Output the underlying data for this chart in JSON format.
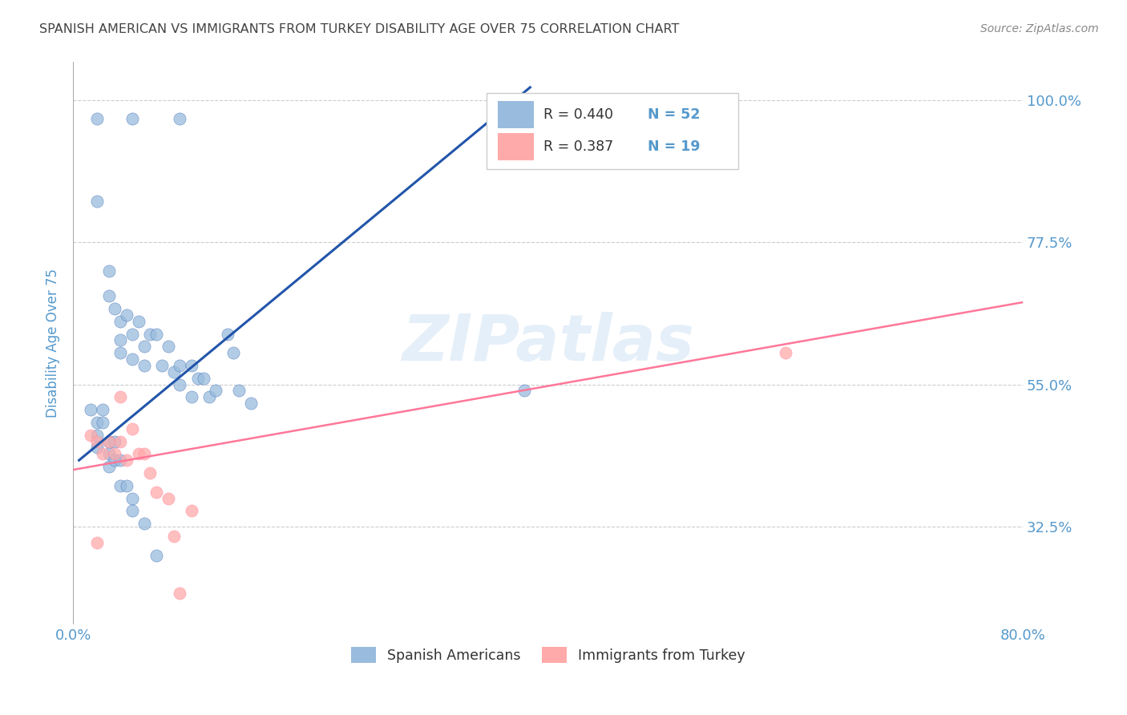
{
  "title": "SPANISH AMERICAN VS IMMIGRANTS FROM TURKEY DISABILITY AGE OVER 75 CORRELATION CHART",
  "source": "Source: ZipAtlas.com",
  "ylabel": "Disability Age Over 75",
  "yticks": [
    "100.0%",
    "77.5%",
    "55.0%",
    "32.5%"
  ],
  "ytick_values": [
    1.0,
    0.775,
    0.55,
    0.325
  ],
  "xmin": 0.0,
  "xmax": 0.8,
  "ymin": 0.17,
  "ymax": 1.06,
  "watermark": "ZIPatlas",
  "legend_r1": "R = 0.440",
  "legend_n1": "N = 52",
  "legend_r2": "R = 0.387",
  "legend_n2": "N = 19",
  "legend_label1": "Spanish Americans",
  "legend_label2": "Immigrants from Turkey",
  "blue_color": "#99BBDD",
  "pink_color": "#FFAAAA",
  "line_blue": "#2255AA",
  "line_pink": "#FF7799",
  "title_color": "#444444",
  "axis_label_color": "#5599CC",
  "tick_color": "#5599CC",
  "blue_scatter_x": [
    0.02,
    0.05,
    0.09,
    0.02,
    0.03,
    0.03,
    0.035,
    0.04,
    0.04,
    0.04,
    0.045,
    0.05,
    0.05,
    0.055,
    0.06,
    0.06,
    0.065,
    0.07,
    0.075,
    0.08,
    0.085,
    0.09,
    0.09,
    0.1,
    0.1,
    0.105,
    0.11,
    0.115,
    0.12,
    0.13,
    0.135,
    0.14,
    0.15,
    0.015,
    0.02,
    0.02,
    0.02,
    0.025,
    0.025,
    0.03,
    0.03,
    0.03,
    0.035,
    0.035,
    0.04,
    0.04,
    0.045,
    0.05,
    0.05,
    0.06,
    0.07,
    0.38
  ],
  "blue_scatter_y": [
    0.97,
    0.97,
    0.97,
    0.84,
    0.73,
    0.69,
    0.67,
    0.65,
    0.62,
    0.6,
    0.66,
    0.63,
    0.59,
    0.65,
    0.61,
    0.58,
    0.63,
    0.63,
    0.58,
    0.61,
    0.57,
    0.58,
    0.55,
    0.58,
    0.53,
    0.56,
    0.56,
    0.53,
    0.54,
    0.63,
    0.6,
    0.54,
    0.52,
    0.51,
    0.49,
    0.47,
    0.45,
    0.51,
    0.49,
    0.46,
    0.44,
    0.42,
    0.46,
    0.43,
    0.43,
    0.39,
    0.39,
    0.37,
    0.35,
    0.33,
    0.28,
    0.54
  ],
  "pink_scatter_x": [
    0.015,
    0.02,
    0.025,
    0.03,
    0.035,
    0.04,
    0.04,
    0.045,
    0.05,
    0.055,
    0.06,
    0.065,
    0.07,
    0.08,
    0.085,
    0.09,
    0.1,
    0.6,
    0.02
  ],
  "pink_scatter_y": [
    0.47,
    0.46,
    0.44,
    0.46,
    0.44,
    0.53,
    0.46,
    0.43,
    0.48,
    0.44,
    0.44,
    0.41,
    0.38,
    0.37,
    0.31,
    0.22,
    0.35,
    0.6,
    0.3
  ],
  "blue_line_x": [
    0.005,
    0.385
  ],
  "blue_line_y": [
    0.43,
    1.02
  ],
  "pink_line_x": [
    0.0,
    0.8
  ],
  "pink_line_y": [
    0.415,
    0.68
  ]
}
